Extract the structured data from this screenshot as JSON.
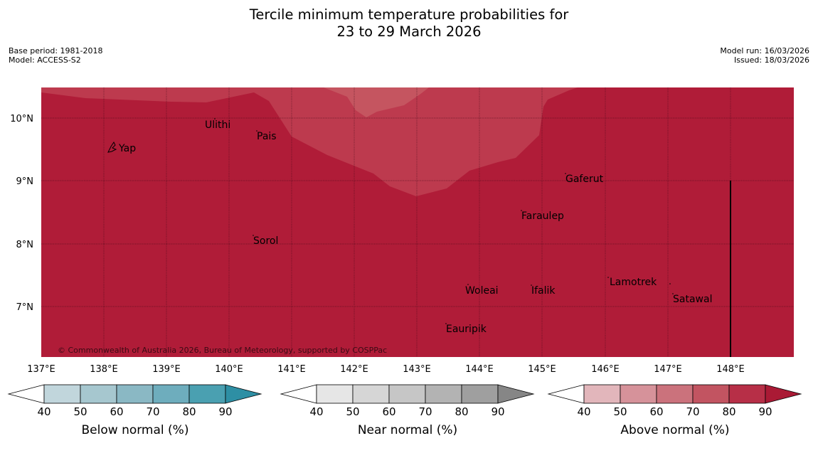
{
  "title_line1": "Tercile minimum temperature probabilities for",
  "title_line2": "23 to 29 March 2026",
  "base_period": "Base period: 1981-2018",
  "model": "Model: ACCESS-S2",
  "model_run": "Model run: 16/03/2026",
  "issued": "Issued: 18/03/2026",
  "copyright": "© Commonwealth of Australia 2026, Bureau of Meteorology, supported by COSPPac",
  "colors": {
    "above_90": "#b01c38",
    "above_80": "#bd3a4e",
    "above_70": "#c55560"
  },
  "map": {
    "lon_labels": [
      "137°E",
      "138°E",
      "139°E",
      "140°E",
      "141°E",
      "142°E",
      "143°E",
      "144°E",
      "145°E",
      "146°E",
      "147°E",
      "148°E"
    ],
    "lat_labels": [
      "10°N",
      "9°N",
      "8°N",
      "7°N"
    ],
    "places": [
      {
        "name": "Yap"
      },
      {
        "name": "Ulithi"
      },
      {
        "name": "Pais"
      },
      {
        "name": "Gaferut"
      },
      {
        "name": "Faraulep"
      },
      {
        "name": "Sorol"
      },
      {
        "name": "Lamotrek"
      },
      {
        "name": "Woleai"
      },
      {
        "name": "Ifalik"
      },
      {
        "name": "Satawal"
      },
      {
        "name": "Eauripik"
      }
    ]
  },
  "colorbars": [
    {
      "title": "Below normal (%)",
      "ticks": [
        "40",
        "50",
        "60",
        "70",
        "80",
        "90"
      ],
      "colors": [
        "#ffffff",
        "#c1d6dc",
        "#a6c7cf",
        "#8ab8c4",
        "#6eadbd",
        "#4aa0b1",
        "#2e8fa4"
      ]
    },
    {
      "title": "Near normal (%)",
      "ticks": [
        "40",
        "50",
        "60",
        "70",
        "80",
        "90"
      ],
      "colors": [
        "#ffffff",
        "#e6e6e6",
        "#d6d6d6",
        "#c6c6c6",
        "#b3b3b3",
        "#9f9f9f",
        "#868686"
      ]
    },
    {
      "title": "Above normal (%)",
      "ticks": [
        "40",
        "50",
        "60",
        "70",
        "80",
        "90"
      ],
      "colors": [
        "#ffffff",
        "#e2b6bb",
        "#d6929a",
        "#cb727c",
        "#c25461",
        "#b72f47",
        "#aa1a35"
      ]
    }
  ]
}
